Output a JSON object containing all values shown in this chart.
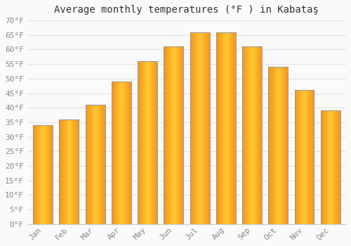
{
  "title": "Average monthly temperatures (°F ) in Kabataş",
  "months": [
    "Jan",
    "Feb",
    "Mar",
    "Apr",
    "May",
    "Jun",
    "Jul",
    "Aug",
    "Sep",
    "Oct",
    "Nov",
    "Dec"
  ],
  "values": [
    34,
    36,
    41,
    49,
    56,
    61,
    66,
    66,
    61,
    54,
    46,
    39
  ],
  "bar_color_center": "#FFB700",
  "bar_color_edge_left": "#F59000",
  "bar_color_top": "#E8E8E8",
  "bar_outline_color": "#9090A0",
  "background_color": "#FAFAFA",
  "grid_color": "#E0E2E8",
  "ylim": [
    0,
    70
  ],
  "yticks": [
    0,
    5,
    10,
    15,
    20,
    25,
    30,
    35,
    40,
    45,
    50,
    55,
    60,
    65,
    70
  ],
  "title_fontsize": 10,
  "tick_fontsize": 8,
  "tick_color": "#888888",
  "title_color": "#333333"
}
